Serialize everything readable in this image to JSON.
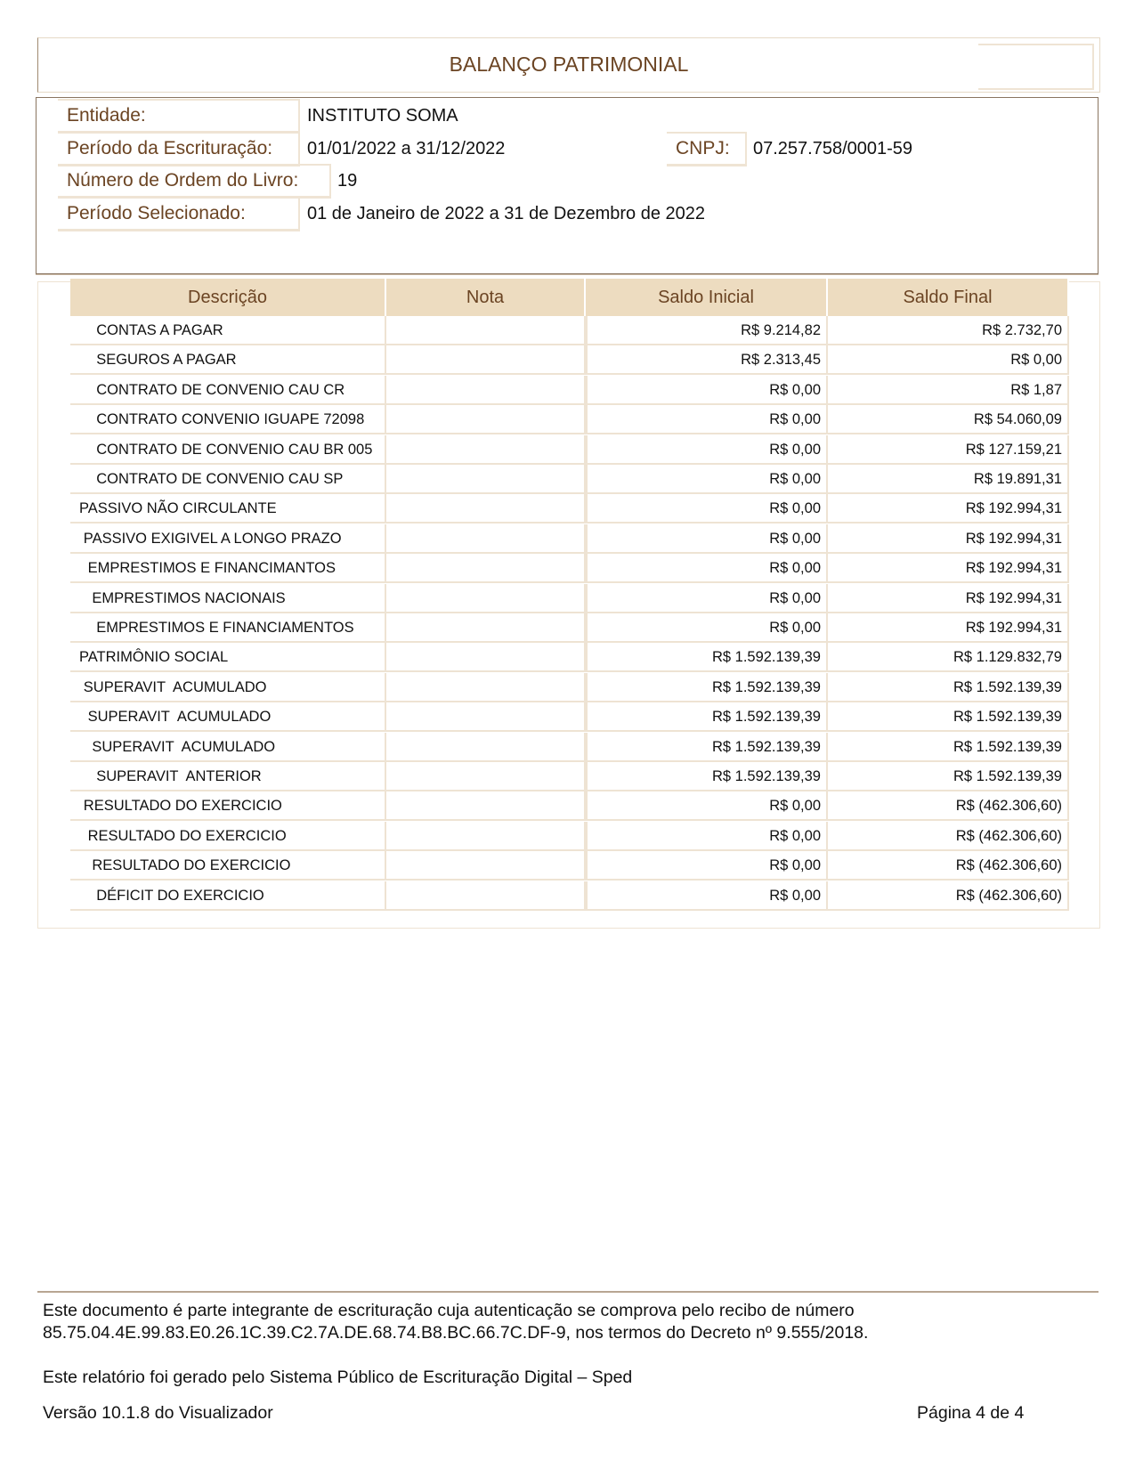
{
  "title": "BALANÇO PATRIMONIAL",
  "info": {
    "entidade_label": "Entidade:",
    "entidade": "INSTITUTO SOMA",
    "periodo_escrituracao_label": "Período da Escrituração:",
    "periodo_escrituracao": "01/01/2022 a 31/12/2022",
    "cnpj_label": "CNPJ:",
    "cnpj": "07.257.758/0001-59",
    "numero_ordem_label": "Número de Ordem do Livro:",
    "numero_ordem": "19",
    "periodo_selecionado_label": "Período Selecionado:",
    "periodo_selecionado": "01 de Janeiro de 2022 a 31 de Dezembro de 2022"
  },
  "table": {
    "headers": [
      "Descrição",
      "Nota",
      "Saldo Inicial",
      "Saldo Final"
    ],
    "rows": [
      {
        "desc": "CONTAS A PAGAR",
        "level": 4,
        "nota": "",
        "inicial": "R$ 9.214,82",
        "final": "R$ 2.732,70"
      },
      {
        "desc": "SEGUROS A PAGAR",
        "level": 4,
        "nota": "",
        "inicial": "R$ 2.313,45",
        "final": "R$ 0,00"
      },
      {
        "desc": "CONTRATO DE CONVENIO CAU CR",
        "level": 4,
        "nota": "",
        "inicial": "R$ 0,00",
        "final": "R$ 1,87"
      },
      {
        "desc": "CONTRATO CONVENIO IGUAPE 72098",
        "level": 4,
        "nota": "",
        "inicial": "R$ 0,00",
        "final": "R$ 54.060,09"
      },
      {
        "desc": "CONTRATO DE CONVENIO CAU BR 005",
        "level": 4,
        "nota": "",
        "inicial": "R$ 0,00",
        "final": "R$ 127.159,21"
      },
      {
        "desc": "CONTRATO DE CONVENIO CAU SP",
        "level": 4,
        "nota": "",
        "inicial": "R$ 0,00",
        "final": "R$ 19.891,31"
      },
      {
        "desc": "PASSIVO NÃO CIRCULANTE",
        "level": 0,
        "nota": "",
        "inicial": "R$ 0,00",
        "final": "R$ 192.994,31"
      },
      {
        "desc": "PASSIVO EXIGIVEL A LONGO PRAZO",
        "level": 1,
        "nota": "",
        "inicial": "R$ 0,00",
        "final": "R$ 192.994,31"
      },
      {
        "desc": "EMPRESTIMOS E FINANCIMANTOS",
        "level": 2,
        "nota": "",
        "inicial": "R$ 0,00",
        "final": "R$ 192.994,31"
      },
      {
        "desc": "EMPRESTIMOS NACIONAIS",
        "level": 3,
        "nota": "",
        "inicial": "R$ 0,00",
        "final": "R$ 192.994,31"
      },
      {
        "desc": "EMPRESTIMOS E FINANCIAMENTOS",
        "level": 4,
        "nota": "",
        "inicial": "R$ 0,00",
        "final": "R$ 192.994,31"
      },
      {
        "desc": "PATRIMÔNIO SOCIAL",
        "level": 0,
        "nota": "",
        "inicial": "R$ 1.592.139,39",
        "final": "R$ 1.129.832,79"
      },
      {
        "desc": "SUPERAVIT  ACUMULADO",
        "level": 1,
        "nota": "",
        "inicial": "R$ 1.592.139,39",
        "final": "R$ 1.592.139,39"
      },
      {
        "desc": "SUPERAVIT  ACUMULADO",
        "level": 2,
        "nota": "",
        "inicial": "R$ 1.592.139,39",
        "final": "R$ 1.592.139,39"
      },
      {
        "desc": "SUPERAVIT  ACUMULADO",
        "level": 3,
        "nota": "",
        "inicial": "R$ 1.592.139,39",
        "final": "R$ 1.592.139,39"
      },
      {
        "desc": "SUPERAVIT  ANTERIOR",
        "level": 4,
        "nota": "",
        "inicial": "R$ 1.592.139,39",
        "final": "R$ 1.592.139,39"
      },
      {
        "desc": "RESULTADO DO EXERCICIO",
        "level": 1,
        "nota": "",
        "inicial": "R$ 0,00",
        "final": "R$ (462.306,60)"
      },
      {
        "desc": "RESULTADO DO EXERCICIO",
        "level": 2,
        "nota": "",
        "inicial": "R$ 0,00",
        "final": "R$ (462.306,60)"
      },
      {
        "desc": "RESULTADO DO EXERCICIO",
        "level": 3,
        "nota": "",
        "inicial": "R$ 0,00",
        "final": "R$ (462.306,60)"
      },
      {
        "desc": "DÉFICIT DO EXERCICIO",
        "level": 4,
        "nota": "",
        "inicial": "R$ 0,00",
        "final": "R$ (462.306,60)"
      }
    ]
  },
  "footer": {
    "line1": "Este documento é parte integrante de escrituração cuja autenticação se comprova pelo recibo de número",
    "line2": "85.75.04.4E.99.83.E0.26.1C.39.C2.7A.DE.68.74.B8.BC.66.7C.DF-9, nos termos do Decreto nº 9.555/2018.",
    "line3": "Este relatório foi gerado pelo Sistema Público de Escrituração Digital – Sped",
    "version": "Versão 10.1.8 do Visualizador",
    "page": "Página 4 de  4"
  },
  "colors": {
    "accent_text": "#6b4423",
    "header_bg": "#eddcc0",
    "grid": "#eee3d3"
  }
}
